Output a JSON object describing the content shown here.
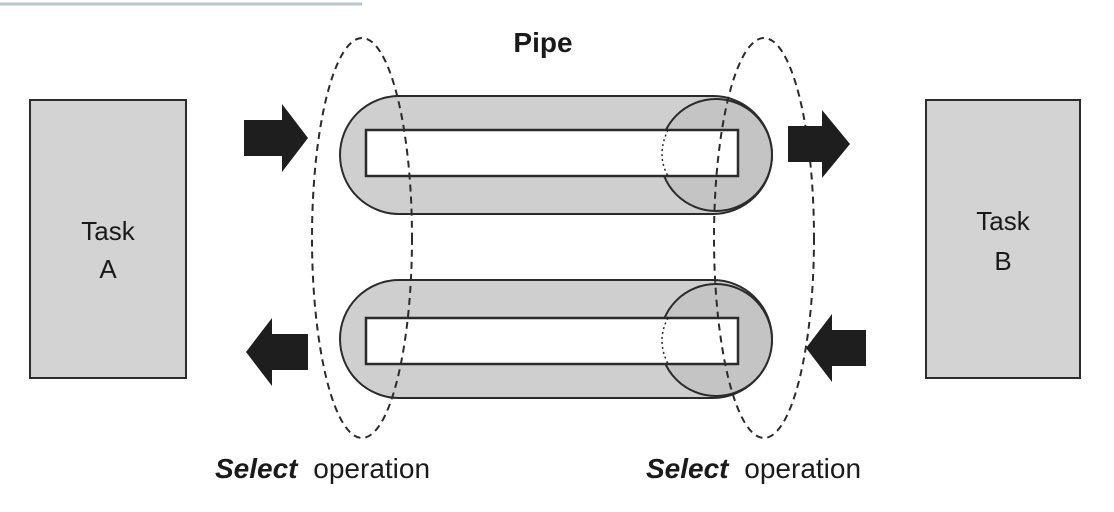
{
  "title": "Pipe",
  "task_a": {
    "line1": "Task",
    "line2": "A"
  },
  "task_b": {
    "line1": "Task",
    "line2": "B"
  },
  "select_left": {
    "keyword": "Select",
    "rest": "operation"
  },
  "select_right": {
    "keyword": "Select",
    "rest": "operation"
  },
  "colors": {
    "box_fill": "#d3d3d3",
    "pipe_fill": "#cfcfcf",
    "stroke": "#2b2b2b",
    "channel_fill": "#ffffff",
    "arrow_fill": "#1e1e1e",
    "text": "#1a1a1a"
  },
  "icons": {
    "arrow_in_top": "arrow-right-icon",
    "arrow_out_top": "arrow-right-icon",
    "arrow_in_bottom": "arrow-left-icon",
    "arrow_out_bottom": "arrow-left-icon"
  }
}
